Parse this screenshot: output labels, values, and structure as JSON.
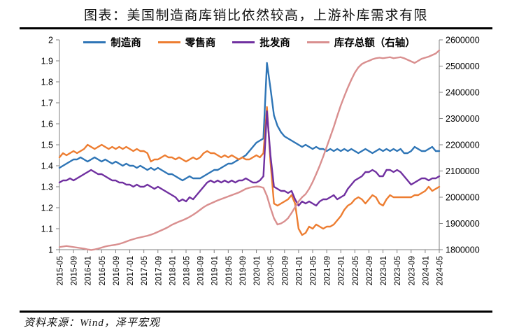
{
  "page": {
    "title": "图表：美国制造商库销比依然较高，上游补库需求有限",
    "source": "资料来源：Wind，泽平宏观"
  },
  "chart_data": {
    "type": "line",
    "title": "图表：美国制造商库销比依然较高，上游补库需求有限",
    "source": "资料来源：Wind，泽平宏观",
    "grid": false,
    "legend_position": "top",
    "x_start": "2015-05",
    "x_end": "2024-05",
    "x_monthly_points": 109,
    "x_tick_labels": [
      "2015-05",
      "2015-09",
      "2016-01",
      "2016-05",
      "2016-09",
      "2017-01",
      "2017-05",
      "2017-09",
      "2018-01",
      "2018-05",
      "2018-09",
      "2019-01",
      "2019-05",
      "2019-09",
      "2020-01",
      "2020-05",
      "2020-09",
      "2021-01",
      "2021-05",
      "2021-09",
      "2022-01",
      "2022-05",
      "2022-09",
      "2023-01",
      "2023-05",
      "2023-09",
      "2024-01",
      "2024-05"
    ],
    "left_axis": {
      "min": 1,
      "max": 2,
      "tick_labels": [
        "2",
        "1.9",
        "1.8",
        "1.7",
        "1.6",
        "1.5",
        "1.4",
        "1.3",
        "1.2",
        "1.1",
        "1"
      ]
    },
    "right_axis": {
      "min": 1800000,
      "max": 2600000,
      "tick_labels": [
        "2600000",
        "2500000",
        "2400000",
        "2300000",
        "2200000",
        "2100000",
        "2000000",
        "1900000",
        "1800000"
      ]
    },
    "series": [
      {
        "id": "manufacturers",
        "name": "制造商",
        "axis": "left",
        "color": "#2E75B6",
        "values": [
          1.39,
          1.4,
          1.41,
          1.42,
          1.43,
          1.43,
          1.44,
          1.43,
          1.42,
          1.43,
          1.44,
          1.43,
          1.42,
          1.43,
          1.42,
          1.41,
          1.42,
          1.41,
          1.4,
          1.41,
          1.4,
          1.4,
          1.39,
          1.4,
          1.39,
          1.38,
          1.39,
          1.38,
          1.39,
          1.38,
          1.37,
          1.36,
          1.36,
          1.35,
          1.34,
          1.33,
          1.34,
          1.35,
          1.34,
          1.34,
          1.34,
          1.35,
          1.36,
          1.37,
          1.38,
          1.38,
          1.39,
          1.4,
          1.41,
          1.41,
          1.42,
          1.43,
          1.44,
          1.45,
          1.47,
          1.49,
          1.51,
          1.52,
          1.53,
          1.89,
          1.77,
          1.64,
          1.59,
          1.56,
          1.54,
          1.53,
          1.52,
          1.51,
          1.5,
          1.49,
          1.5,
          1.49,
          1.48,
          1.49,
          1.48,
          1.48,
          1.47,
          1.48,
          1.47,
          1.48,
          1.47,
          1.48,
          1.47,
          1.48,
          1.47,
          1.46,
          1.47,
          1.48,
          1.47,
          1.46,
          1.47,
          1.48,
          1.47,
          1.48,
          1.47,
          1.48,
          1.47,
          1.48,
          1.46,
          1.46,
          1.47,
          1.49,
          1.48,
          1.47,
          1.47,
          1.48,
          1.49,
          1.47,
          1.47
        ]
      },
      {
        "id": "retailers",
        "name": "零售商",
        "axis": "left",
        "color": "#ED7D31",
        "values": [
          1.44,
          1.46,
          1.45,
          1.46,
          1.47,
          1.46,
          1.47,
          1.48,
          1.5,
          1.49,
          1.48,
          1.49,
          1.5,
          1.49,
          1.48,
          1.49,
          1.48,
          1.49,
          1.48,
          1.49,
          1.48,
          1.47,
          1.48,
          1.47,
          1.47,
          1.46,
          1.42,
          1.43,
          1.43,
          1.44,
          1.45,
          1.44,
          1.44,
          1.43,
          1.44,
          1.43,
          1.42,
          1.43,
          1.44,
          1.43,
          1.44,
          1.46,
          1.47,
          1.46,
          1.46,
          1.45,
          1.44,
          1.45,
          1.44,
          1.45,
          1.44,
          1.43,
          1.44,
          1.43,
          1.43,
          1.44,
          1.45,
          1.44,
          1.46,
          1.68,
          1.42,
          1.22,
          1.21,
          1.22,
          1.23,
          1.24,
          1.26,
          1.22,
          1.1,
          1.07,
          1.08,
          1.11,
          1.1,
          1.12,
          1.11,
          1.1,
          1.11,
          1.11,
          1.12,
          1.14,
          1.16,
          1.19,
          1.21,
          1.22,
          1.24,
          1.25,
          1.24,
          1.22,
          1.24,
          1.26,
          1.25,
          1.22,
          1.21,
          1.24,
          1.26,
          1.25,
          1.25,
          1.25,
          1.25,
          1.25,
          1.25,
          1.26,
          1.26,
          1.27,
          1.28,
          1.3,
          1.28,
          1.29,
          1.3
        ]
      },
      {
        "id": "wholesalers",
        "name": "批发商",
        "axis": "left",
        "color": "#7030A0",
        "values": [
          1.32,
          1.33,
          1.33,
          1.34,
          1.33,
          1.34,
          1.35,
          1.36,
          1.37,
          1.38,
          1.37,
          1.36,
          1.36,
          1.35,
          1.34,
          1.33,
          1.33,
          1.32,
          1.32,
          1.31,
          1.31,
          1.3,
          1.31,
          1.3,
          1.3,
          1.31,
          1.3,
          1.29,
          1.3,
          1.29,
          1.28,
          1.27,
          1.26,
          1.25,
          1.23,
          1.24,
          1.23,
          1.25,
          1.24,
          1.26,
          1.28,
          1.3,
          1.32,
          1.33,
          1.32,
          1.33,
          1.32,
          1.33,
          1.32,
          1.33,
          1.32,
          1.33,
          1.33,
          1.34,
          1.33,
          1.32,
          1.32,
          1.33,
          1.35,
          1.66,
          1.45,
          1.3,
          1.29,
          1.28,
          1.28,
          1.27,
          1.28,
          1.24,
          1.21,
          1.23,
          1.22,
          1.23,
          1.22,
          1.21,
          1.23,
          1.24,
          1.24,
          1.25,
          1.26,
          1.24,
          1.25,
          1.26,
          1.29,
          1.31,
          1.33,
          1.34,
          1.35,
          1.37,
          1.37,
          1.38,
          1.37,
          1.35,
          1.35,
          1.38,
          1.38,
          1.37,
          1.38,
          1.37,
          1.35,
          1.33,
          1.31,
          1.32,
          1.33,
          1.34,
          1.34,
          1.33,
          1.34,
          1.34,
          1.35
        ]
      },
      {
        "id": "total-inventory",
        "name": "库存总额（右轴）",
        "axis": "right",
        "color": "#D98F8F",
        "values": [
          1810000,
          1812000,
          1814000,
          1812000,
          1810000,
          1808000,
          1806000,
          1804000,
          1801000,
          1799000,
          1801000,
          1804000,
          1808000,
          1812000,
          1815000,
          1817000,
          1819000,
          1822000,
          1826000,
          1831000,
          1836000,
          1840000,
          1844000,
          1847000,
          1850000,
          1853000,
          1857000,
          1862000,
          1868000,
          1874000,
          1880000,
          1887000,
          1895000,
          1901000,
          1907000,
          1912000,
          1918000,
          1925000,
          1933000,
          1942000,
          1952000,
          1962000,
          1970000,
          1976000,
          1982000,
          1988000,
          1993000,
          1998000,
          2003000,
          2008000,
          2013000,
          2018000,
          2025000,
          2032000,
          2036000,
          2039000,
          2041000,
          2040000,
          2036000,
          2005000,
          1960000,
          1920000,
          1896000,
          1900000,
          1908000,
          1920000,
          1940000,
          1962000,
          1984000,
          2000000,
          2012000,
          2032000,
          2058000,
          2088000,
          2120000,
          2155000,
          2192000,
          2230000,
          2268000,
          2310000,
          2350000,
          2385000,
          2418000,
          2448000,
          2475000,
          2495000,
          2508000,
          2515000,
          2520000,
          2526000,
          2530000,
          2532000,
          2530000,
          2532000,
          2534000,
          2530000,
          2532000,
          2534000,
          2530000,
          2524000,
          2518000,
          2512000,
          2520000,
          2528000,
          2532000,
          2536000,
          2542000,
          2548000,
          2560000
        ]
      }
    ]
  }
}
